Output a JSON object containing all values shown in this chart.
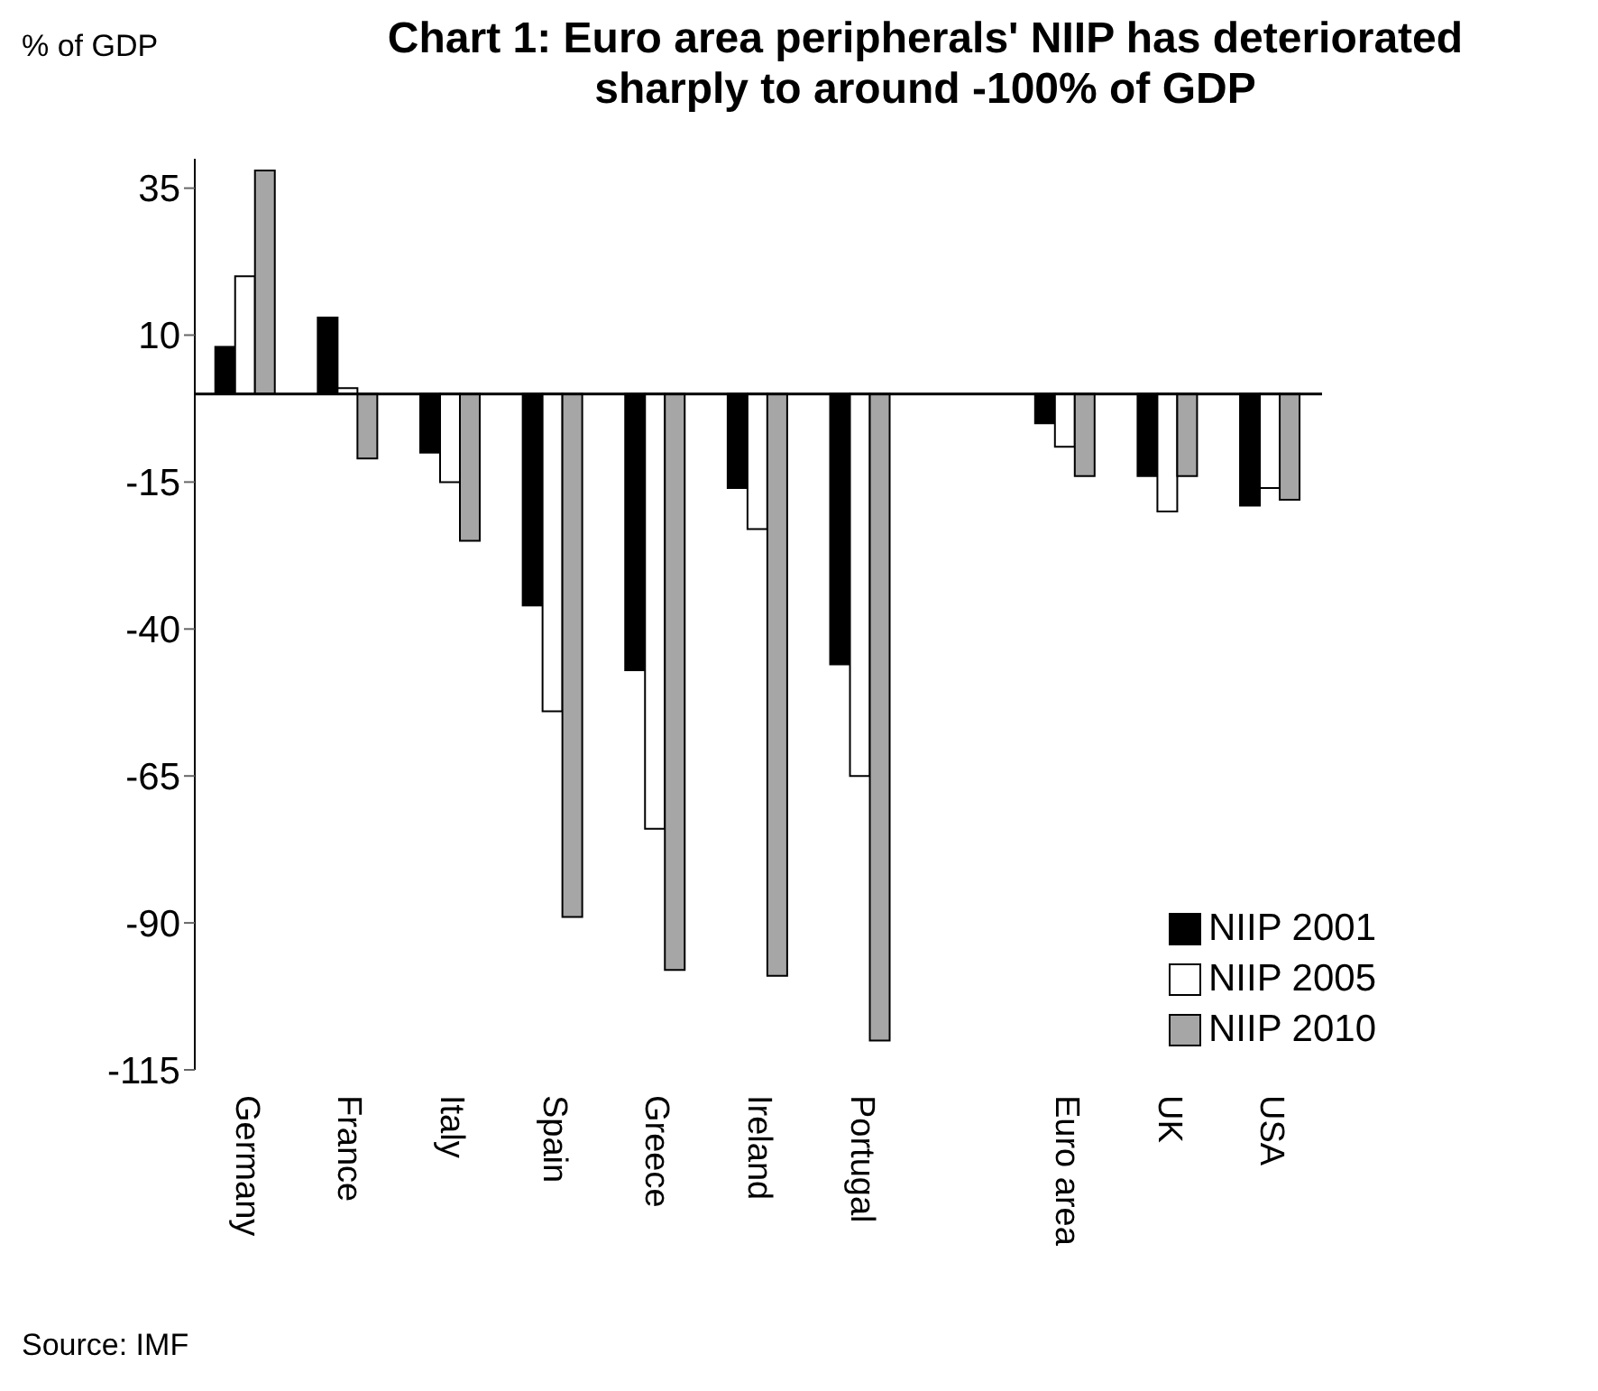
{
  "chart_data": {
    "type": "bar",
    "title": "Chart 1: Euro area peripherals' NIIP has deteriorated sharply to around -100% of GDP",
    "ylabel": "% of GDP",
    "categories": [
      "Germany",
      "France",
      "Italy",
      "Spain",
      "Greece",
      "Ireland",
      "Portugal",
      null,
      "Euro area",
      "UK",
      "USA"
    ],
    "series": [
      {
        "name": "NIIP 2001",
        "color": "#000000",
        "values": [
          8,
          13,
          -10,
          -36,
          -47,
          -16,
          -46,
          null,
          -5,
          -14,
          -19
        ]
      },
      {
        "name": "NIIP 2005",
        "color": "#ffffff",
        "values": [
          20,
          1,
          -15,
          -54,
          -74,
          -23,
          -65,
          null,
          -9,
          -20,
          -16
        ]
      },
      {
        "name": "NIIP 2010",
        "color": "#a6a6a6",
        "values": [
          38,
          -11,
          -25,
          -89,
          -98,
          -99,
          -110,
          null,
          -14,
          -14,
          -18
        ]
      }
    ],
    "ylim": [
      -115,
      40
    ],
    "yticks": [
      35,
      10,
      -15,
      -40,
      -65,
      -90,
      -115
    ],
    "ref_lines": [
      {
        "axis": "y",
        "value": 0
      }
    ],
    "grid": false,
    "legend": "bottom right",
    "annotations": [
      "Source: IMF"
    ]
  }
}
